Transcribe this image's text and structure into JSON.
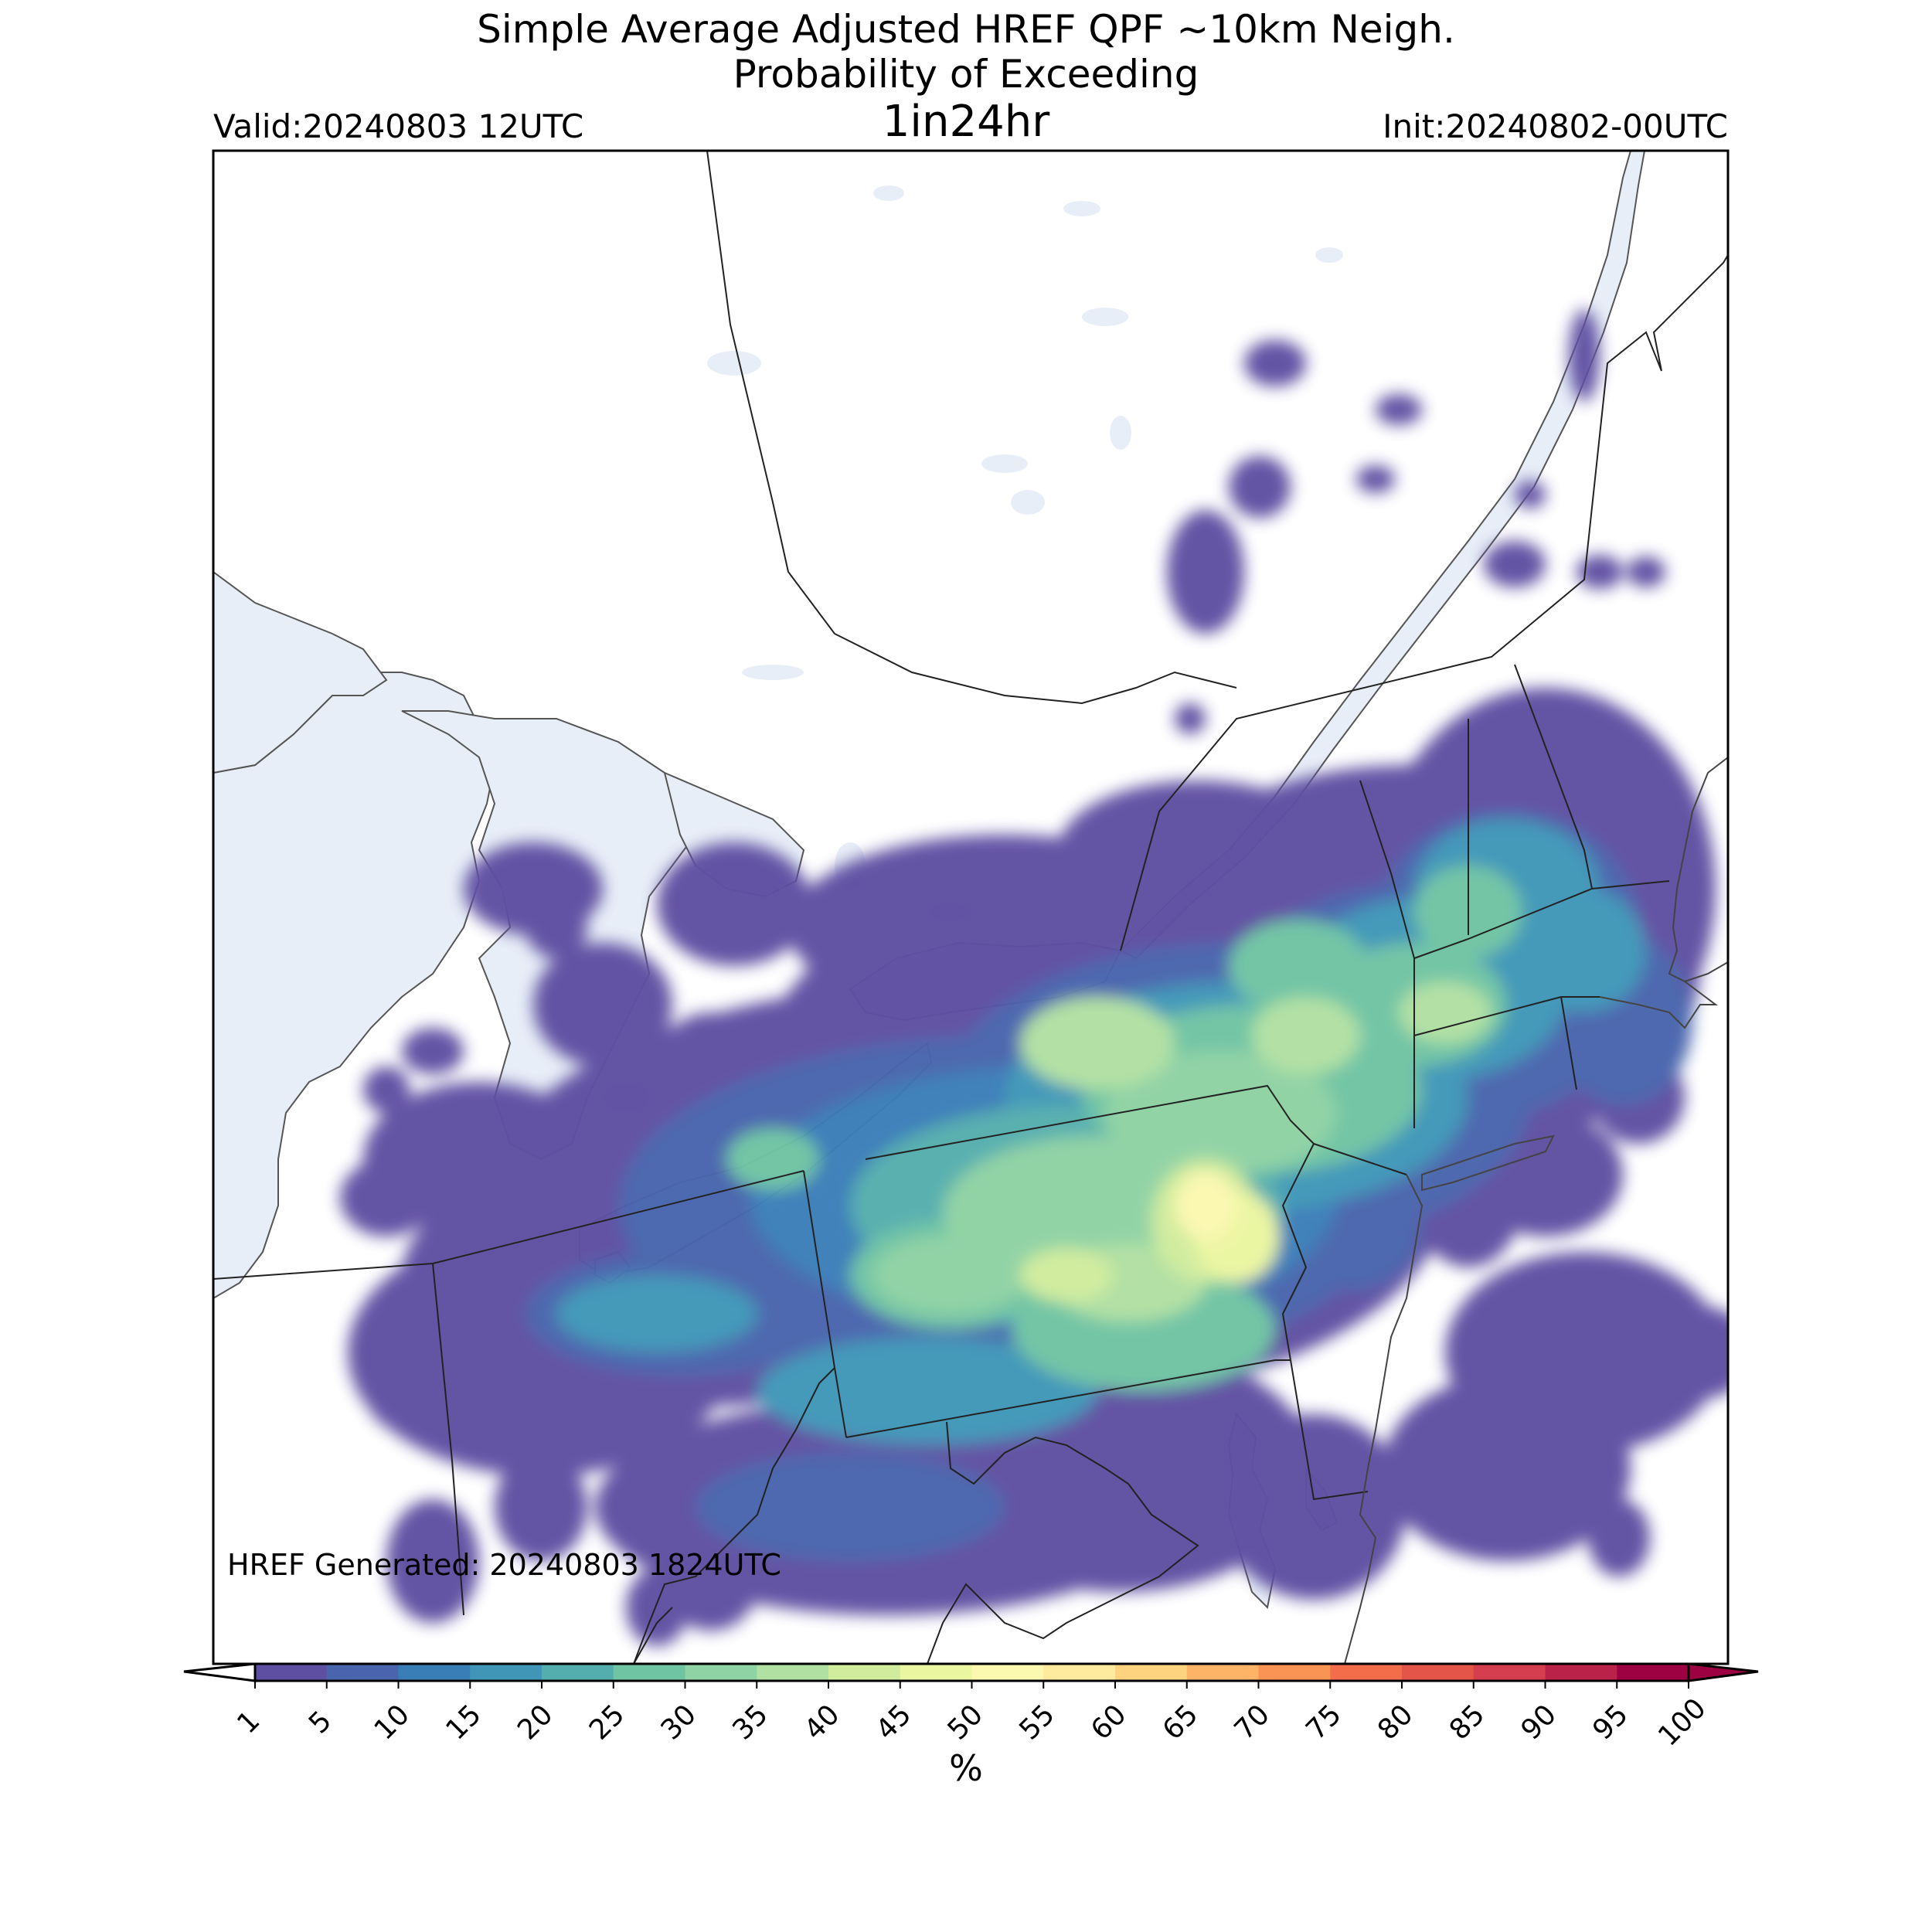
{
  "title": {
    "line1": "Simple Average Adjusted HREF QPF ~10km Neigh.",
    "line2": "Probability of Exceeding",
    "line3": "1in24hr"
  },
  "valid": "Valid:20240803 12UTC",
  "init": "Init:20240802-00UTC",
  "generated": "HREF Generated: 20240803 1824UTC",
  "colorbar": {
    "unit": "%",
    "ticks": [
      "1",
      "5",
      "10",
      "15",
      "20",
      "25",
      "30",
      "35",
      "40",
      "45",
      "50",
      "55",
      "60",
      "65",
      "70",
      "75",
      "80",
      "85",
      "90",
      "95",
      "100"
    ],
    "colors": [
      "#5e4fa2",
      "#4a65ad",
      "#3a7eb8",
      "#3f96b7",
      "#54aead",
      "#6fc4a4",
      "#8fd2a4",
      "#b1e0a3",
      "#d0ec9c",
      "#ebf6a1",
      "#fbf8b0",
      "#feeb9d",
      "#fdd380",
      "#fdb467",
      "#f99455",
      "#f36d4a",
      "#e45549",
      "#d53e4f",
      "#bb2249",
      "#9e0142"
    ]
  },
  "layers": {
    "water_color": "#e8eef7",
    "border_color": "#222222"
  }
}
